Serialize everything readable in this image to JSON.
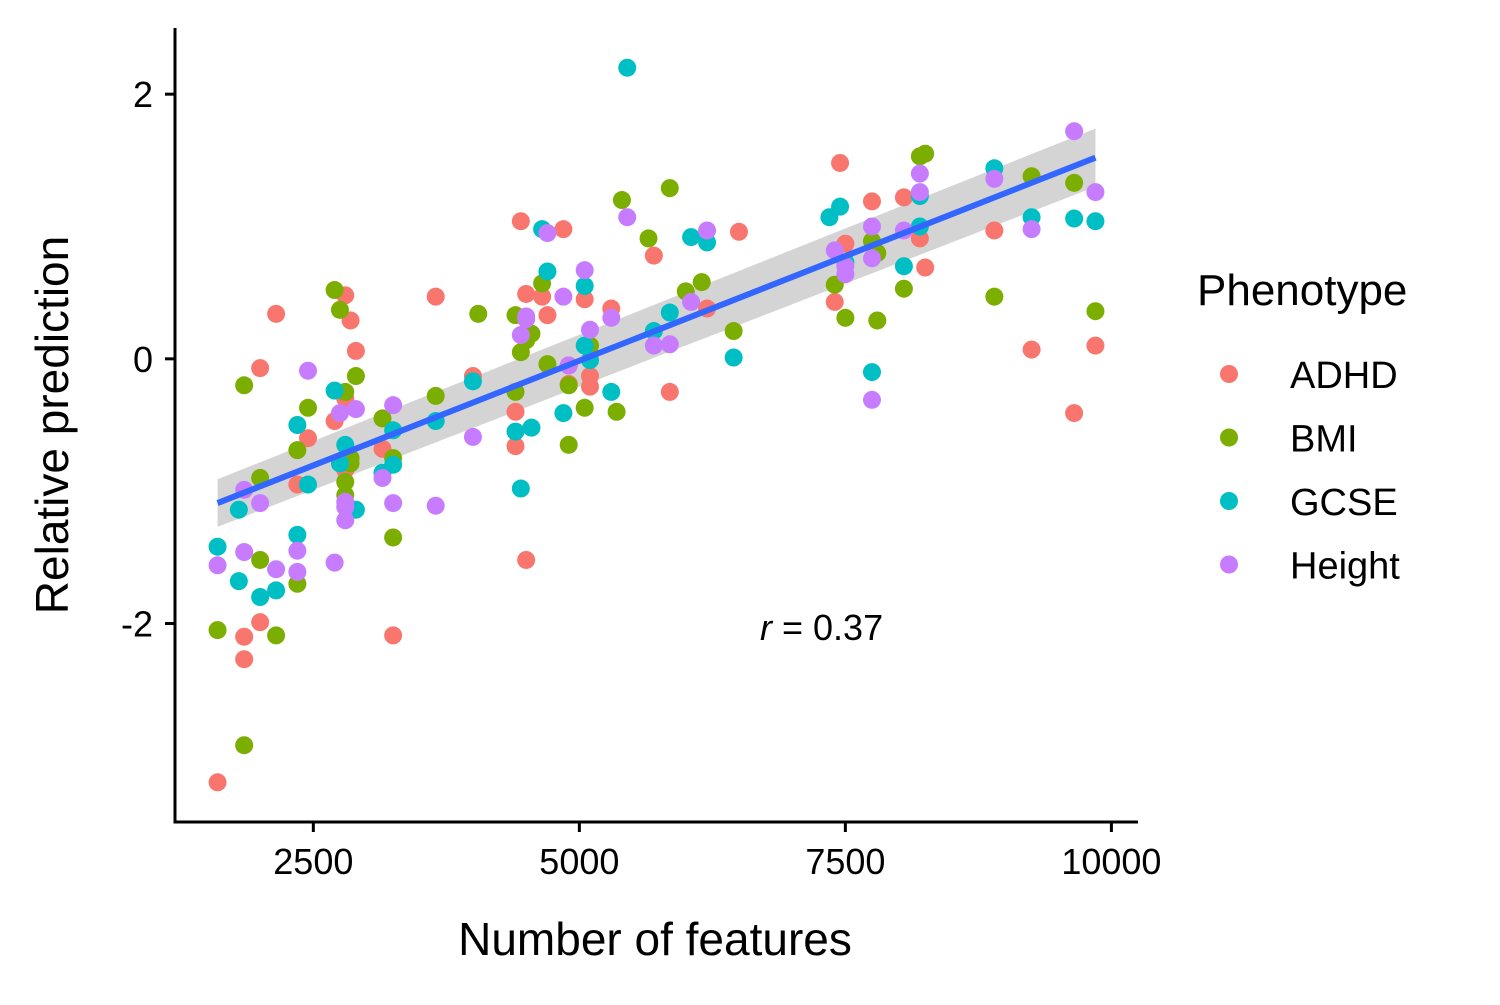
{
  "chart_data": {
    "type": "scatter",
    "xlabel": "Number of features",
    "ylabel": "Relative prediction",
    "xlim": [
      1200,
      10250
    ],
    "ylim": [
      -3.5,
      2.5
    ],
    "x_ticks": [
      2500,
      5000,
      7500,
      10000
    ],
    "x_tick_labels": [
      "2500",
      "5000",
      "7500",
      "10000"
    ],
    "y_ticks": [
      2,
      0,
      -2
    ],
    "y_tick_labels": [
      "2",
      "0",
      "-2"
    ],
    "grid": false,
    "legend": {
      "title": "Phenotype",
      "position": "right"
    },
    "annotation": {
      "r_symbol": "r",
      "text": " = 0.37",
      "x": 6700,
      "y": -2.05
    },
    "trend": {
      "x_start": 1600,
      "x_end": 9850,
      "y_start": -1.09,
      "y_end": 1.52,
      "band_start": 0.18,
      "band_end": 0.22,
      "line_color": "#3366FF",
      "band_color": "#cccccc"
    },
    "series": [
      {
        "name": "ADHD",
        "color": "#F8766D",
        "points": [
          [
            2150,
            0.34
          ],
          [
            2000,
            -0.07
          ],
          [
            1850,
            -2.1
          ],
          [
            1850,
            -2.27
          ],
          [
            1600,
            -3.2
          ],
          [
            2000,
            -1.99
          ],
          [
            2450,
            -0.6
          ],
          [
            2350,
            -0.95
          ],
          [
            2700,
            -0.47
          ],
          [
            2800,
            0.48
          ],
          [
            2850,
            0.29
          ],
          [
            2900,
            0.06
          ],
          [
            2800,
            -0.3
          ],
          [
            2800,
            -0.84
          ],
          [
            3250,
            -2.09
          ],
          [
            3150,
            -0.68
          ],
          [
            3650,
            0.47
          ],
          [
            4000,
            -0.13
          ],
          [
            4450,
            1.04
          ],
          [
            4400,
            -0.4
          ],
          [
            4400,
            -0.66
          ],
          [
            4500,
            -1.52
          ],
          [
            4500,
            0.49
          ],
          [
            4650,
            0.47
          ],
          [
            4700,
            0.33
          ],
          [
            4850,
            0.98
          ],
          [
            4900,
            -0.05
          ],
          [
            4900,
            -0.19
          ],
          [
            5050,
            0.45
          ],
          [
            5100,
            -0.13
          ],
          [
            5100,
            -0.21
          ],
          [
            5300,
            0.38
          ],
          [
            5700,
            0.78
          ],
          [
            5850,
            -0.25
          ],
          [
            6200,
            0.38
          ],
          [
            6500,
            0.96
          ],
          [
            7450,
            1.48
          ],
          [
            7400,
            0.43
          ],
          [
            7500,
            0.87
          ],
          [
            7750,
            1.19
          ],
          [
            8050,
            1.22
          ],
          [
            8200,
            0.91
          ],
          [
            8250,
            0.69
          ],
          [
            8900,
            0.97
          ],
          [
            9250,
            0.07
          ],
          [
            9650,
            -0.41
          ],
          [
            9850,
            0.1
          ]
        ]
      },
      {
        "name": "BMI",
        "color": "#7CAE00",
        "points": [
          [
            1850,
            -0.2
          ],
          [
            1600,
            -2.05
          ],
          [
            1850,
            -2.92
          ],
          [
            2000,
            -0.9
          ],
          [
            2000,
            -1.52
          ],
          [
            2150,
            -2.09
          ],
          [
            2350,
            -0.69
          ],
          [
            2450,
            -0.37
          ],
          [
            2350,
            -1.7
          ],
          [
            2700,
            0.52
          ],
          [
            2750,
            0.37
          ],
          [
            2800,
            -0.25
          ],
          [
            2800,
            -0.93
          ],
          [
            2800,
            -1.03
          ],
          [
            2850,
            -0.75
          ],
          [
            2900,
            -0.13
          ],
          [
            2850,
            -0.79
          ],
          [
            3150,
            -0.45
          ],
          [
            3250,
            -0.75
          ],
          [
            3250,
            -1.35
          ],
          [
            3650,
            -0.28
          ],
          [
            4050,
            0.34
          ],
          [
            4400,
            0.33
          ],
          [
            4400,
            -0.25
          ],
          [
            4450,
            0.05
          ],
          [
            4500,
            0.14
          ],
          [
            4550,
            0.19
          ],
          [
            4650,
            0.57
          ],
          [
            4700,
            -0.04
          ],
          [
            4900,
            -0.65
          ],
          [
            4900,
            -0.2
          ],
          [
            5050,
            -0.37
          ],
          [
            5100,
            0.1
          ],
          [
            5350,
            -0.4
          ],
          [
            5400,
            1.2
          ],
          [
            5650,
            0.91
          ],
          [
            5850,
            1.29
          ],
          [
            6000,
            0.51
          ],
          [
            6150,
            0.58
          ],
          [
            6450,
            0.21
          ],
          [
            7400,
            0.56
          ],
          [
            7500,
            0.31
          ],
          [
            7750,
            0.89
          ],
          [
            7800,
            0.8
          ],
          [
            7800,
            0.29
          ],
          [
            8050,
            0.53
          ],
          [
            8200,
            1.53
          ],
          [
            8250,
            1.55
          ],
          [
            8900,
            0.47
          ],
          [
            9250,
            1.38
          ],
          [
            9650,
            1.33
          ],
          [
            9850,
            0.36
          ]
        ]
      },
      {
        "name": "GCSE",
        "color": "#00BFC4",
        "points": [
          [
            1600,
            -1.42
          ],
          [
            1800,
            -1.14
          ],
          [
            1800,
            -1.68
          ],
          [
            2000,
            -1.8
          ],
          [
            2150,
            -1.75
          ],
          [
            2350,
            -0.5
          ],
          [
            2350,
            -1.33
          ],
          [
            2450,
            -0.95
          ],
          [
            2700,
            -0.24
          ],
          [
            2750,
            -0.79
          ],
          [
            2800,
            -0.65
          ],
          [
            2900,
            -1.14
          ],
          [
            3150,
            -0.86
          ],
          [
            3250,
            -0.8
          ],
          [
            3250,
            -0.54
          ],
          [
            3650,
            -0.47
          ],
          [
            4000,
            -0.17
          ],
          [
            4400,
            -0.55
          ],
          [
            4450,
            -0.98
          ],
          [
            4550,
            -0.52
          ],
          [
            4650,
            0.98
          ],
          [
            4700,
            0.66
          ],
          [
            4850,
            -0.41
          ],
          [
            5050,
            0.55
          ],
          [
            5050,
            0.1
          ],
          [
            5100,
            -0.01
          ],
          [
            5300,
            -0.25
          ],
          [
            5450,
            2.2
          ],
          [
            5700,
            0.21
          ],
          [
            5850,
            0.35
          ],
          [
            6050,
            0.92
          ],
          [
            6200,
            0.88
          ],
          [
            6450,
            0.01
          ],
          [
            7350,
            1.07
          ],
          [
            7450,
            1.15
          ],
          [
            7500,
            0.73
          ],
          [
            7750,
            -0.1
          ],
          [
            8050,
            0.7
          ],
          [
            8200,
            1.0
          ],
          [
            8200,
            1.23
          ],
          [
            8900,
            1.44
          ],
          [
            9250,
            1.07
          ],
          [
            9650,
            1.06
          ],
          [
            9850,
            1.04
          ]
        ]
      },
      {
        "name": "Height",
        "color": "#C77CFF",
        "points": [
          [
            1600,
            -1.56
          ],
          [
            1850,
            -1.46
          ],
          [
            1850,
            -0.99
          ],
          [
            2000,
            -1.09
          ],
          [
            2150,
            -1.59
          ],
          [
            2350,
            -1.61
          ],
          [
            2350,
            -1.45
          ],
          [
            2450,
            -0.09
          ],
          [
            2700,
            -1.54
          ],
          [
            2750,
            -0.41
          ],
          [
            2800,
            -1.08
          ],
          [
            2800,
            -1.12
          ],
          [
            2800,
            -1.22
          ],
          [
            2900,
            -0.38
          ],
          [
            3150,
            -0.9
          ],
          [
            3250,
            -0.35
          ],
          [
            3250,
            -1.09
          ],
          [
            3650,
            -1.11
          ],
          [
            4000,
            -0.59
          ],
          [
            4450,
            0.18
          ],
          [
            4500,
            0.32
          ],
          [
            4500,
            0.3
          ],
          [
            4700,
            0.95
          ],
          [
            4850,
            0.47
          ],
          [
            4900,
            -0.05
          ],
          [
            5050,
            0.67
          ],
          [
            5100,
            0.22
          ],
          [
            5300,
            0.31
          ],
          [
            5450,
            1.07
          ],
          [
            5700,
            0.1
          ],
          [
            5850,
            0.11
          ],
          [
            6050,
            0.43
          ],
          [
            6200,
            0.97
          ],
          [
            7400,
            0.82
          ],
          [
            7500,
            0.7
          ],
          [
            7500,
            0.64
          ],
          [
            7750,
            1.0
          ],
          [
            7750,
            0.76
          ],
          [
            7750,
            -0.31
          ],
          [
            8050,
            0.97
          ],
          [
            8200,
            1.4
          ],
          [
            8200,
            1.26
          ],
          [
            8900,
            1.36
          ],
          [
            9250,
            0.98
          ],
          [
            9650,
            1.72
          ],
          [
            9850,
            1.26
          ]
        ]
      }
    ]
  }
}
